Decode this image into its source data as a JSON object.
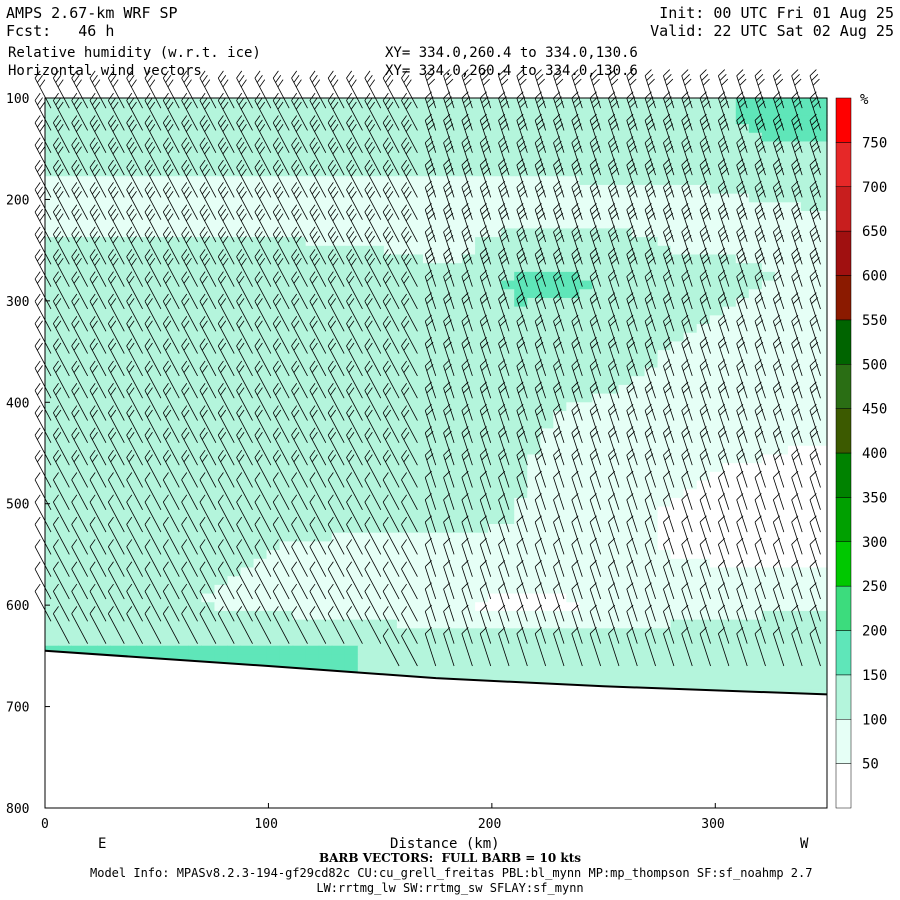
{
  "header": {
    "model": "AMPS 2.67-km WRF SP",
    "fcst": "Fcst:   46 h",
    "field1": "Relative humidity (w.r.t. ice)",
    "field2": "Horizontal wind vectors",
    "xy1": "XY= 334.0,260.4 to 334.0,130.6",
    "xy2": "XY= 334.0,260.4 to 334.0,130.6",
    "init": "Init: 00 UTC Fri 01 Aug 25",
    "valid": "Valid: 22 UTC Sat 02 Aug 25"
  },
  "chart_data": {
    "type": "heatmap",
    "title": "Relative humidity (w.r.t. ice)",
    "xlabel": "Distance (km)",
    "ylabel": "",
    "xlim": [
      0,
      350
    ],
    "ylim": [
      800,
      100
    ],
    "x_ticks": [
      0,
      100,
      200,
      300
    ],
    "y_ticks": [
      100,
      200,
      300,
      400,
      500,
      600,
      700,
      800
    ],
    "x_endpoint_labels": [
      "E",
      "W"
    ],
    "colorbar": {
      "unit": "%",
      "ticks": [
        50,
        100,
        150,
        200,
        250,
        300,
        350,
        400,
        450,
        500,
        550,
        600,
        650,
        700,
        750
      ],
      "colors": [
        "#ffffff",
        "#e6fff6",
        "#b4f5dc",
        "#5fe6b9",
        "#3cdc7d",
        "#00c800",
        "#00a000",
        "#008200",
        "#3c5a00",
        "#2a6e14",
        "#006400",
        "#8b1a00",
        "#a01010",
        "#c81e1e",
        "#e62828",
        "#ff0000"
      ]
    },
    "series": [
      {
        "pressure": 120,
        "rh_profile": [
          140,
          140,
          140,
          140,
          140,
          140,
          140,
          140,
          140,
          140,
          140,
          140,
          140,
          140,
          170,
          170
        ]
      },
      {
        "pressure": 210,
        "rh_profile": [
          80,
          80,
          80,
          80,
          80,
          80,
          80,
          80,
          80,
          80,
          80,
          85,
          85,
          90,
          95,
          100
        ]
      },
      {
        "pressure": 280,
        "rh_profile": [
          130,
          130,
          130,
          130,
          130,
          125,
          120,
          110,
          105,
          160,
          160,
          140,
          110,
          105,
          100,
          100
        ]
      },
      {
        "pressure": 400,
        "rh_profile": [
          105,
          110,
          105,
          105,
          105,
          105,
          105,
          105,
          105,
          105,
          100,
          95,
          90,
          85,
          80,
          70
        ]
      },
      {
        "pressure": 520,
        "rh_profile": [
          105,
          105,
          105,
          105,
          105,
          105,
          105,
          105,
          105,
          100,
          90,
          70,
          40,
          20,
          10,
          5
        ]
      },
      {
        "pressure": 600,
        "rh_profile": [
          105,
          105,
          105,
          100,
          95,
          80,
          70,
          60,
          50,
          40,
          45,
          55,
          65,
          80,
          90,
          95
        ]
      },
      {
        "pressure": 640,
        "rh_profile": [
          150,
          150,
          150,
          150,
          150,
          150,
          150,
          140,
          140,
          140,
          140,
          140,
          140,
          140,
          140,
          140
        ]
      }
    ],
    "x_samples": [
      0,
      23,
      47,
      70,
      93,
      117,
      140,
      163,
      187,
      210,
      233,
      257,
      280,
      303,
      327,
      350
    ],
    "terrain_pressure": {
      "x": [
        0,
        100,
        175,
        250,
        350
      ],
      "p": [
        645,
        660,
        672,
        680,
        688
      ]
    }
  },
  "footer": {
    "barb_note": "BARB VECTORS:  FULL BARB = 10 kts",
    "model_info": "Model Info: MPASv8.2.3-194-gf29cd82c CU:cu_grell_freitas PBL:bl_mynn MP:mp_thompson SF:sf_noahmp 2.7",
    "model_info2": "LW:rrtmg_lw SW:rrtmg_sw SFLAY:sf_mynn"
  }
}
